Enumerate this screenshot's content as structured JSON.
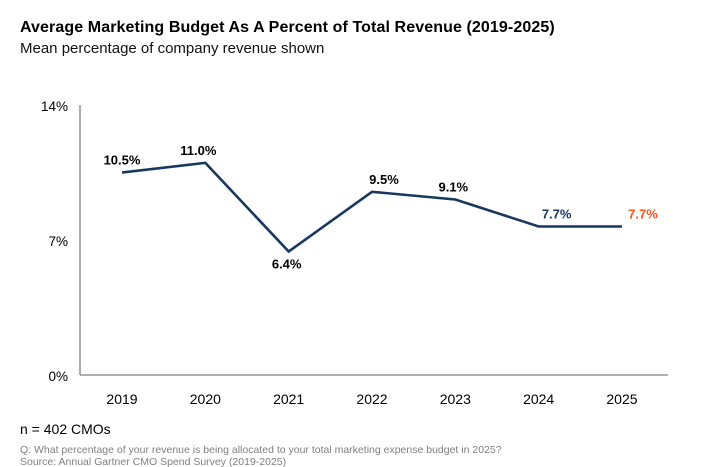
{
  "header": {
    "title": "Average Marketing Budget As A Percent of Total Revenue (2019-2025)",
    "subtitle": "Mean percentage of company revenue shown"
  },
  "chart_data": {
    "type": "line",
    "title": "Average Marketing Budget As A Percent of Total Revenue (2019-2025)",
    "subtitle": "Mean percentage of company revenue shown",
    "categories": [
      "2019",
      "2020",
      "2021",
      "2022",
      "2023",
      "2024",
      "2025"
    ],
    "values": [
      10.5,
      11.0,
      6.4,
      9.5,
      9.1,
      7.7,
      7.7
    ],
    "data_labels": [
      "10.5%",
      "11.0%",
      "6.4%",
      "9.5%",
      "9.1%",
      "7.7%",
      "7.7%"
    ],
    "data_label_colors": [
      "#000000",
      "#000000",
      "#000000",
      "#000000",
      "#000000",
      "#17375E",
      "#F9531E"
    ],
    "data_label_positions": [
      "above",
      "above",
      "below",
      "above",
      "above",
      "above",
      "above"
    ],
    "data_label_dx": [
      0,
      -7,
      -2,
      12,
      -2,
      18,
      21
    ],
    "line_color": "#17375E",
    "axis_color": "#808080",
    "tick_label_color": "#000000",
    "xlabel": "",
    "ylabel": "",
    "ylim": [
      0,
      14
    ],
    "yticks": [
      {
        "value": 0,
        "label": "0%"
      },
      {
        "value": 7,
        "label": "7%"
      },
      {
        "value": 14,
        "label": "14%"
      }
    ],
    "grid": false,
    "legend": false,
    "markers": false
  },
  "footer": {
    "n_label": "n = 402 CMOs",
    "question": "Q: What percentage of your revenue is being allocated to your total marketing expense budget in 2025?",
    "source": "Source: Annual Gartner CMO Spend Survey (2019-2025)"
  }
}
